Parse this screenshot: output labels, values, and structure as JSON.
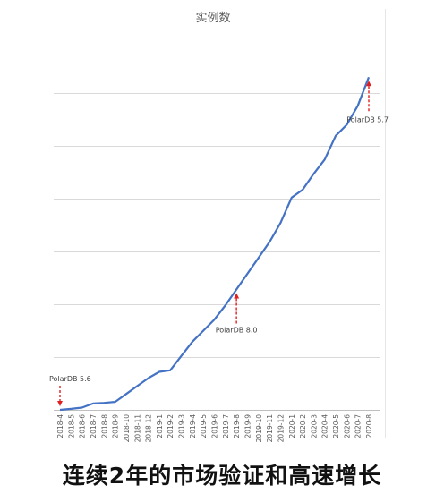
{
  "chart_data": {
    "type": "line",
    "title": "实例数",
    "xlabel": "",
    "ylabel": "",
    "grid": true,
    "y_tick_labels_shown": false,
    "ylim": [
      0,
      100
    ],
    "categories": [
      "2018-4",
      "2018-5",
      "2018-6",
      "2018-7",
      "2018-8",
      "2018-9",
      "2018-10",
      "2018-11",
      "2018-12",
      "2019-1",
      "2019-2",
      "2019-3",
      "2019-4",
      "2019-5",
      "2019-6",
      "2019-7",
      "2019-8",
      "2019-9",
      "2019-10",
      "2019-11",
      "2019-12",
      "2020-1",
      "2020-2",
      "2020-3",
      "2020-4",
      "2020-5",
      "2020-6",
      "2020-7",
      "2020-8"
    ],
    "values": [
      0,
      0.3,
      0.7,
      2,
      2.2,
      2.5,
      5,
      7.5,
      10,
      12,
      12.5,
      17,
      21.5,
      25,
      28.5,
      33,
      38,
      43,
      48,
      53,
      59,
      67,
      69.5,
      74.5,
      79,
      86.5,
      90,
      96,
      105
    ],
    "color": "#4472c4",
    "annotations": [
      {
        "label": "PolarDB 5.6",
        "category": "2018-4",
        "marker": "arrow-down"
      },
      {
        "label": "PolarDB 8.0",
        "category": "2019-8",
        "marker": "arrow-up"
      },
      {
        "label": "PolarDB 5.7",
        "category": "2020-8",
        "marker": "arrow-up"
      }
    ]
  },
  "caption": "连续2年的市场验证和高速增长"
}
